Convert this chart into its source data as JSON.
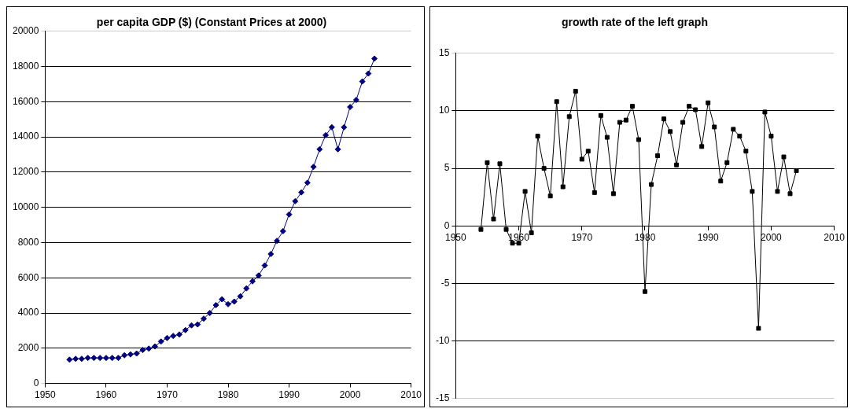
{
  "chart_data": [
    {
      "type": "line",
      "title": "per capita GDP ($) (Constant Prices at 2000)",
      "color": "#000080",
      "marker": "diamond",
      "grid": "y",
      "x": [
        1954,
        1955,
        1956,
        1957,
        1958,
        1959,
        1960,
        1961,
        1962,
        1963,
        1964,
        1965,
        1966,
        1967,
        1968,
        1969,
        1970,
        1971,
        1972,
        1973,
        1974,
        1975,
        1976,
        1977,
        1978,
        1979,
        1980,
        1981,
        1982,
        1983,
        1984,
        1985,
        1986,
        1987,
        1988,
        1989,
        1990,
        1991,
        1992,
        1993,
        1994,
        1995,
        1996,
        1997,
        1998,
        1999,
        2000,
        2001,
        2002,
        2003,
        2004
      ],
      "values": [
        1350,
        1400,
        1400,
        1450,
        1450,
        1450,
        1450,
        1450,
        1450,
        1600,
        1650,
        1700,
        1900,
        1980,
        2100,
        2380,
        2580,
        2700,
        2780,
        3030,
        3300,
        3350,
        3680,
        4000,
        4450,
        4780,
        4500,
        4650,
        4950,
        5400,
        5800,
        6130,
        6700,
        7350,
        8100,
        8650,
        9600,
        10350,
        10850,
        11400,
        12300,
        13300,
        14100,
        14550,
        13300,
        14550,
        15700,
        16100,
        17150,
        17600,
        18450
      ],
      "xlim": [
        1950,
        2010
      ],
      "xticks": [
        1950,
        1960,
        1970,
        1980,
        1990,
        2000,
        2010
      ],
      "ylim": [
        0,
        20000
      ],
      "yticks": [
        0,
        2000,
        4000,
        6000,
        8000,
        10000,
        12000,
        14000,
        16000,
        18000,
        20000
      ]
    },
    {
      "type": "line",
      "title": "growth rate of the left graph",
      "color": "#000000",
      "marker": "square",
      "grid": "y",
      "x": [
        1954,
        1955,
        1956,
        1957,
        1958,
        1959,
        1960,
        1961,
        1962,
        1963,
        1964,
        1965,
        1966,
        1967,
        1968,
        1969,
        1970,
        1971,
        1972,
        1973,
        1974,
        1975,
        1976,
        1977,
        1978,
        1979,
        1980,
        1981,
        1982,
        1983,
        1984,
        1985,
        1986,
        1987,
        1988,
        1989,
        1990,
        1991,
        1992,
        1993,
        1994,
        1995,
        1996,
        1997,
        1998,
        1999,
        2000,
        2001,
        2002,
        2003,
        2004
      ],
      "values": [
        -0.3,
        5.5,
        0.6,
        5.4,
        -0.3,
        -1.5,
        -1.5,
        3.0,
        -0.6,
        7.8,
        5.0,
        2.6,
        10.8,
        3.4,
        9.5,
        11.7,
        5.8,
        6.5,
        2.9,
        9.6,
        7.7,
        2.8,
        9.0,
        9.2,
        10.4,
        7.5,
        -5.7,
        3.6,
        6.1,
        9.3,
        8.2,
        5.3,
        9.0,
        10.4,
        10.1,
        6.9,
        10.7,
        8.6,
        3.9,
        5.5,
        8.4,
        7.8,
        6.5,
        3.0,
        -8.9,
        9.9,
        7.8,
        3.0,
        6.0,
        2.8,
        4.8
      ],
      "xlim": [
        1950,
        2010
      ],
      "xticks": [
        1950,
        1960,
        1970,
        1980,
        1990,
        2000,
        2010
      ],
      "ylim": [
        -15,
        15
      ],
      "yticks": [
        -15,
        -10,
        -5,
        0,
        5,
        10,
        15
      ]
    }
  ]
}
